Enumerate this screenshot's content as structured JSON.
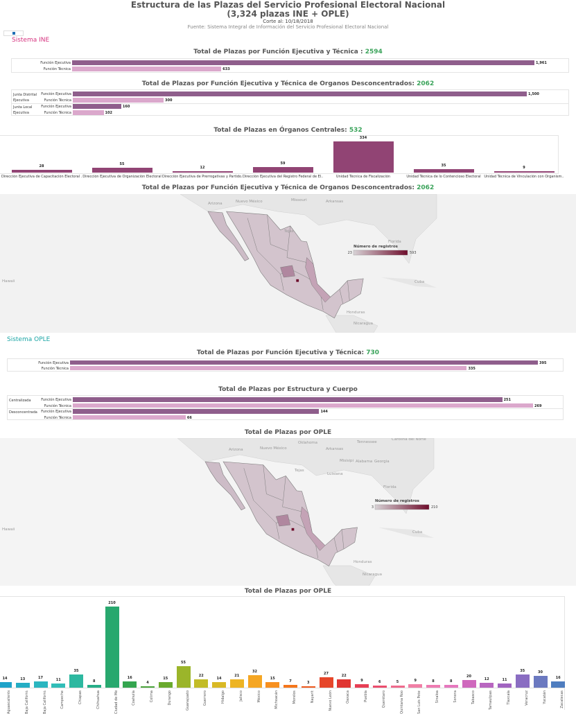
{
  "header": {
    "title_line1": "Estructura de las Plazas del Servicio Profesional Electoral Nacional",
    "title_line2": "(3,324 plazas INE + OPLE)",
    "corte": "Corte al: 10/18/2018",
    "fuente": "Fuente: Sistema Integral de Información del Servicio Profesional Electoral Nacional"
  },
  "colors": {
    "ejecutiva": "#8f5e8c",
    "tecnica": "#dba8cc",
    "centrales": "#914474",
    "ine_section": "#d6337f",
    "ople_section": "#1aa5a5",
    "total": "#3aa35a",
    "map_low": "#d8d2d6",
    "map_high": "#6e0d2c"
  },
  "ine": {
    "section_label": "Sistema INE",
    "funcion": {
      "title": "Total de Plazas por Función Ejecutiva y Técnica : ",
      "total": "2594",
      "rows": [
        {
          "label": "Función Ejecutiva",
          "value": 1961,
          "value_label": "1,961"
        },
        {
          "label": "Función Técnica",
          "value": 633,
          "value_label": "633"
        }
      ]
    },
    "desconcentrados": {
      "title": "Total de Plazas por Función Ejecutiva y Técnica de Organos Desconcentrados: ",
      "total": "2062",
      "groups": [
        {
          "label": "Junta Distrital Ejecutiva",
          "rows": [
            {
              "label": "Función Ejecutiva",
              "value": 1500,
              "value_label": "1,500"
            },
            {
              "label": "Función Técnica",
              "value": 300,
              "value_label": "300"
            }
          ]
        },
        {
          "label": "Junta Local Ejecutiva",
          "rows": [
            {
              "label": "Función Ejecutiva",
              "value": 160,
              "value_label": "160"
            },
            {
              "label": "Función Técnica",
              "value": 102,
              "value_label": "102"
            }
          ]
        }
      ]
    },
    "centrales": {
      "title": "Total de Plazas en Órganos Centrales: ",
      "total": "532"
    },
    "map": {
      "title": "Total de Plazas por Función Ejecutiva y Técnica de Organos Desconcentrados: ",
      "total": "2062",
      "legend_title": "Número de registros",
      "legend_min": "23",
      "legend_max": "593",
      "place_labels": [
        "Hawaii",
        "Arkansas",
        "Missouri",
        "Florida",
        "Cuba",
        "Honduras",
        "Nicaragua",
        "Nuevo México",
        "Arizona",
        "Tejas"
      ]
    }
  },
  "ople": {
    "section_label": "Sistema OPLE",
    "funcion": {
      "title": "Total de Plazas por Función Ejecutiva y Técnica: ",
      "total": "730",
      "rows": [
        {
          "label": "Función Ejecutiva",
          "value": 395,
          "value_label": "395"
        },
        {
          "label": "Función Técnica",
          "value": 335,
          "value_label": "335"
        }
      ]
    },
    "estructura": {
      "title": "Total de Plazas por Estructura y Cuerpo",
      "groups": [
        {
          "label": "Centralizada",
          "rows": [
            {
              "label": "Función Ejecutiva",
              "value": 251,
              "value_label": "251"
            },
            {
              "label": "Función Técnica",
              "value": 269,
              "value_label": "269"
            }
          ]
        },
        {
          "label": "Desconcentrada",
          "rows": [
            {
              "label": "Función Ejecutiva",
              "value": 144,
              "value_label": "144"
            },
            {
              "label": "Función Técnica",
              "value": 66,
              "value_label": "66"
            }
          ]
        }
      ]
    },
    "map": {
      "title": "Total de Plazas por OPLE",
      "legend_title": "Número de registros",
      "legend_min": "3",
      "legend_max": "210",
      "place_labels": [
        "Hawaii",
        "Oklahoma",
        "Arkansas",
        "Tennessee",
        "Carolina del Norte",
        "Arizona",
        "Nuevo México",
        "Tejas",
        "Luisiana",
        "Misisipi",
        "Alabama",
        "Georgia",
        "Florida",
        "Cuba",
        "Honduras",
        "Nicaragua"
      ]
    },
    "por_ople_title": "Total de Plazas por OPLE"
  },
  "chart_data": [
    {
      "type": "bar",
      "title": "Total de Plazas en Órganos Centrales: 532",
      "categories": [
        "Dirección Ejecutiva de Capacitación Electoral ..",
        "Dirección Ejecutiva de Organización Electoral",
        "Dirección Ejecutiva de Prerrogativas y Partido..",
        "Dirección Ejecutiva del Registro Federal de El..",
        "Unidad Técnica de Fiscalización",
        "Unidad Técnica de lo Contencioso Electoral",
        "Unidad Técnica de Vinculación con Organism.."
      ],
      "values": [
        28,
        55,
        12,
        59,
        334,
        35,
        9
      ]
    },
    {
      "type": "bar",
      "title": "Total de Plazas por OPLE",
      "categories": [
        "Aguascalientes",
        "Baja California",
        "Baja California Sur",
        "Campeche",
        "Chiapas",
        "Chihuahua",
        "Ciudad de México",
        "Coahuila",
        "Colima",
        "Durango",
        "Guanajuato",
        "Guerrero",
        "Hidalgo",
        "Jalisco",
        "México",
        "Michoacán",
        "Morelos",
        "Nayarit",
        "Nuevo León",
        "Oaxaca",
        "Puebla",
        "Querétaro",
        "Quintana Roo",
        "San Luis Potosí",
        "Sinaloa",
        "Sonora",
        "Tabasco",
        "Tamaulipas",
        "Tlaxcala",
        "Veracruz",
        "Yucatán",
        "Zacatecas"
      ],
      "values": [
        14,
        13,
        17,
        11,
        35,
        8,
        210,
        16,
        4,
        15,
        55,
        22,
        14,
        21,
        32,
        15,
        7,
        3,
        27,
        22,
        9,
        6,
        5,
        9,
        8,
        8,
        20,
        12,
        11,
        35,
        30,
        16
      ],
      "colors": [
        "#1fa3c9",
        "#25adc4",
        "#2bb6c0",
        "#31bdb8",
        "#2db8a0",
        "#27ae88",
        "#28a86e",
        "#34a54f",
        "#4ba43c",
        "#6aaa2e",
        "#9bb52a",
        "#c2bc28",
        "#d9b925",
        "#edb424",
        "#f5a623",
        "#f7901f",
        "#f5761b",
        "#ef5a1e",
        "#e6462a",
        "#e03632",
        "#e83e55",
        "#eb4d6d",
        "#ef6a8c",
        "#f07fa5",
        "#ee7cb2",
        "#e678be",
        "#cf68bd",
        "#b866c0",
        "#a164c0",
        "#8a6dc2",
        "#6b79c0",
        "#4f7dbf"
      ]
    }
  ]
}
